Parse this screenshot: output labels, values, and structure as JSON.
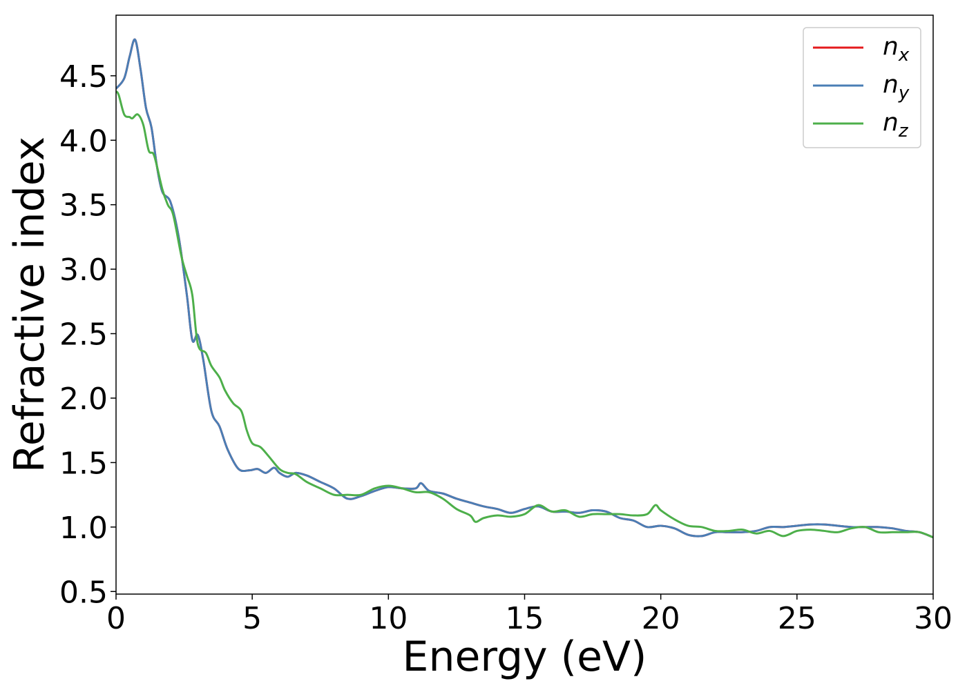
{
  "chart_data": {
    "type": "line",
    "xlabel": "Energy (eV)",
    "ylabel": "Refractive index",
    "xlim": [
      0,
      30
    ],
    "ylim": [
      0.48,
      4.97
    ],
    "xticks": [
      0,
      5,
      10,
      15,
      20,
      25,
      30
    ],
    "xtick_labels": [
      "0",
      "5",
      "10",
      "15",
      "20",
      "25",
      "30"
    ],
    "yticks": [
      0.5,
      1.0,
      1.5,
      2.0,
      2.5,
      3.0,
      3.5,
      4.0,
      4.5
    ],
    "ytick_labels": [
      "0.5",
      "1.0",
      "1.5",
      "2.0",
      "2.5",
      "3.0",
      "3.5",
      "4.0",
      "4.5"
    ],
    "grid": false,
    "legend_position": "top-right",
    "series": [
      {
        "name": "n",
        "subscript": "x",
        "color": "#e41a1c",
        "x": [
          0,
          0.3,
          0.5,
          0.7,
          0.9,
          1.1,
          1.3,
          1.5,
          1.7,
          2.0,
          2.3,
          2.6,
          2.8,
          3.0,
          3.2,
          3.5,
          3.8,
          4.1,
          4.5,
          4.9,
          5.2,
          5.5,
          5.8,
          6.0,
          6.3,
          6.6,
          7.0,
          7.5,
          8.0,
          8.5,
          9.0,
          9.5,
          10.0,
          10.5,
          11.0,
          11.2,
          11.5,
          12.0,
          12.5,
          13.0,
          13.5,
          14.0,
          14.5,
          15.0,
          15.5,
          16.0,
          16.5,
          17.0,
          17.5,
          18.0,
          18.5,
          19.0,
          19.5,
          20.0,
          20.5,
          21.0,
          21.5,
          22.0,
          22.5,
          23.0,
          23.5,
          24.0,
          24.5,
          25.0,
          25.5,
          26.0,
          26.5,
          27.0,
          27.5,
          28.0,
          28.5,
          29.0,
          29.5,
          30.0
        ],
        "y": [
          4.4,
          4.48,
          4.65,
          4.78,
          4.55,
          4.25,
          4.1,
          3.8,
          3.6,
          3.52,
          3.25,
          2.8,
          2.45,
          2.49,
          2.3,
          1.9,
          1.78,
          1.6,
          1.45,
          1.44,
          1.45,
          1.42,
          1.46,
          1.42,
          1.39,
          1.42,
          1.4,
          1.35,
          1.3,
          1.22,
          1.24,
          1.28,
          1.31,
          1.3,
          1.3,
          1.34,
          1.28,
          1.26,
          1.22,
          1.19,
          1.16,
          1.14,
          1.11,
          1.14,
          1.16,
          1.12,
          1.12,
          1.11,
          1.13,
          1.12,
          1.07,
          1.05,
          1.0,
          1.01,
          0.99,
          0.94,
          0.93,
          0.96,
          0.96,
          0.96,
          0.97,
          1.0,
          1.0,
          1.01,
          1.02,
          1.02,
          1.01,
          1.0,
          1.0,
          1.0,
          0.99,
          0.97,
          0.96,
          0.92
        ]
      },
      {
        "name": "n",
        "subscript": "y",
        "color": "#4a7eb5",
        "x": [
          0,
          0.3,
          0.5,
          0.7,
          0.9,
          1.1,
          1.3,
          1.5,
          1.7,
          2.0,
          2.3,
          2.6,
          2.8,
          3.0,
          3.2,
          3.5,
          3.8,
          4.1,
          4.5,
          4.9,
          5.2,
          5.5,
          5.8,
          6.0,
          6.3,
          6.6,
          7.0,
          7.5,
          8.0,
          8.5,
          9.0,
          9.5,
          10.0,
          10.5,
          11.0,
          11.2,
          11.5,
          12.0,
          12.5,
          13.0,
          13.5,
          14.0,
          14.5,
          15.0,
          15.5,
          16.0,
          16.5,
          17.0,
          17.5,
          18.0,
          18.5,
          19.0,
          19.5,
          20.0,
          20.5,
          21.0,
          21.5,
          22.0,
          22.5,
          23.0,
          23.5,
          24.0,
          24.5,
          25.0,
          25.5,
          26.0,
          26.5,
          27.0,
          27.5,
          28.0,
          28.5,
          29.0,
          29.5,
          30.0
        ],
        "y": [
          4.4,
          4.48,
          4.65,
          4.78,
          4.55,
          4.25,
          4.1,
          3.8,
          3.6,
          3.52,
          3.25,
          2.8,
          2.45,
          2.49,
          2.3,
          1.9,
          1.78,
          1.6,
          1.45,
          1.44,
          1.45,
          1.42,
          1.46,
          1.42,
          1.39,
          1.42,
          1.4,
          1.35,
          1.3,
          1.22,
          1.24,
          1.28,
          1.31,
          1.3,
          1.3,
          1.34,
          1.28,
          1.26,
          1.22,
          1.19,
          1.16,
          1.14,
          1.11,
          1.14,
          1.16,
          1.12,
          1.12,
          1.11,
          1.13,
          1.12,
          1.07,
          1.05,
          1.0,
          1.01,
          0.99,
          0.94,
          0.93,
          0.96,
          0.96,
          0.96,
          0.97,
          1.0,
          1.0,
          1.01,
          1.02,
          1.02,
          1.01,
          1.0,
          1.0,
          1.0,
          0.99,
          0.97,
          0.96,
          0.92
        ]
      },
      {
        "name": "n",
        "subscript": "z",
        "color": "#4daf4a",
        "x": [
          0,
          0.1,
          0.3,
          0.5,
          0.6,
          0.8,
          1.0,
          1.2,
          1.4,
          1.7,
          1.9,
          2.1,
          2.4,
          2.6,
          2.8,
          3.0,
          3.3,
          3.5,
          3.8,
          4.0,
          4.3,
          4.6,
          4.8,
          5.0,
          5.3,
          5.6,
          6.0,
          6.3,
          6.6,
          7.0,
          7.5,
          8.0,
          8.5,
          9.0,
          9.5,
          10.0,
          10.5,
          11.0,
          11.5,
          12.0,
          12.5,
          13.0,
          13.2,
          13.5,
          14.0,
          14.5,
          15.0,
          15.5,
          16.0,
          16.5,
          17.0,
          17.5,
          18.0,
          18.5,
          19.0,
          19.5,
          19.8,
          20.0,
          20.5,
          21.0,
          21.5,
          22.0,
          22.5,
          23.0,
          23.5,
          24.0,
          24.5,
          25.0,
          25.5,
          26.0,
          26.5,
          27.0,
          27.5,
          28.0,
          28.5,
          29.0,
          29.5,
          30.0
        ],
        "y": [
          4.38,
          4.35,
          4.2,
          4.18,
          4.17,
          4.2,
          4.12,
          3.92,
          3.88,
          3.62,
          3.5,
          3.42,
          3.1,
          2.95,
          2.8,
          2.42,
          2.35,
          2.25,
          2.16,
          2.06,
          1.96,
          1.9,
          1.75,
          1.65,
          1.62,
          1.55,
          1.45,
          1.42,
          1.41,
          1.35,
          1.3,
          1.25,
          1.25,
          1.25,
          1.3,
          1.32,
          1.3,
          1.27,
          1.27,
          1.22,
          1.14,
          1.09,
          1.04,
          1.07,
          1.09,
          1.08,
          1.1,
          1.17,
          1.12,
          1.13,
          1.08,
          1.1,
          1.1,
          1.1,
          1.09,
          1.1,
          1.17,
          1.13,
          1.06,
          1.01,
          1.0,
          0.97,
          0.97,
          0.98,
          0.95,
          0.97,
          0.93,
          0.97,
          0.98,
          0.97,
          0.96,
          0.99,
          1.0,
          0.96,
          0.96,
          0.96,
          0.96,
          0.92
        ]
      }
    ]
  }
}
